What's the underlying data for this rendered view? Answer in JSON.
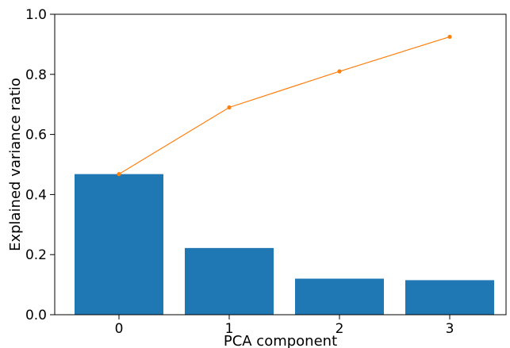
{
  "chart_data": {
    "type": "bar",
    "title": "",
    "xlabel": "PCA component",
    "ylabel": "Explained variance ratio",
    "categories": [
      "0",
      "1",
      "2",
      "3"
    ],
    "ylim": [
      0,
      1.0
    ],
    "yticks": [
      "0.0",
      "0.2",
      "0.4",
      "0.6",
      "0.8",
      "1.0"
    ],
    "grid": false,
    "series": [
      {
        "type": "bar",
        "values": [
          0.468,
          0.222,
          0.12,
          0.115
        ],
        "color": "#1f77b4"
      },
      {
        "type": "line",
        "values": [
          0.468,
          0.69,
          0.81,
          0.925
        ],
        "color": "#ff7f0e"
      }
    ]
  }
}
